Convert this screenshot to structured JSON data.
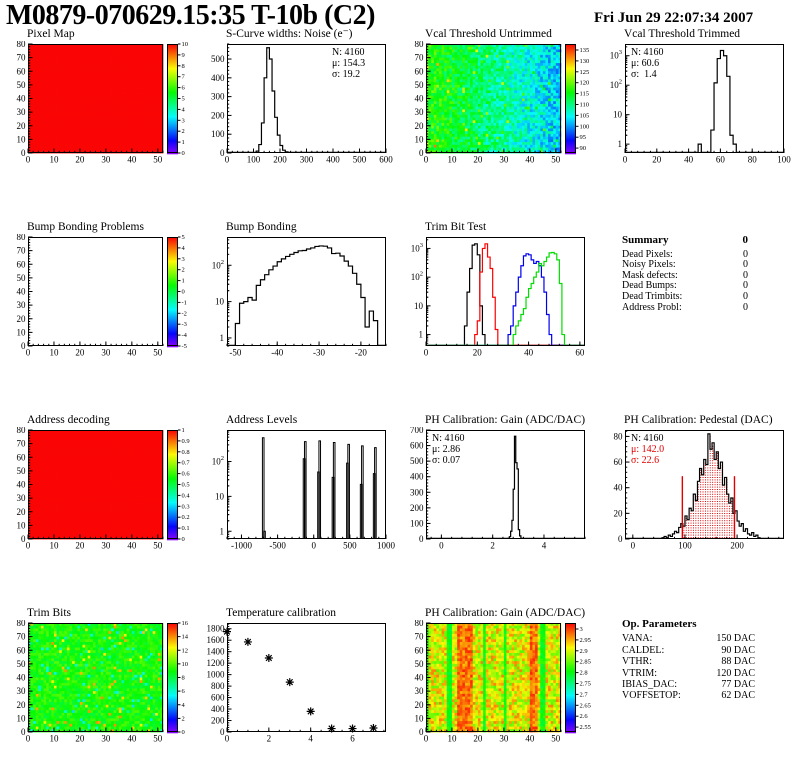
{
  "header": {
    "title": "M0879-070629.15:35 T-10b (C2)",
    "date": "Fri Jun 29 22:07:34 2007"
  },
  "summary": {
    "title": "Summary",
    "total": "0",
    "rows": [
      {
        "label": "Dead Pixels:",
        "value": "0"
      },
      {
        "label": "Noisy Pixels:",
        "value": "0"
      },
      {
        "label": "Mask defects:",
        "value": "0"
      },
      {
        "label": "Dead Bumps:",
        "value": "0"
      },
      {
        "label": "Dead Trimbits:",
        "value": "0"
      },
      {
        "label": "Address Probl:",
        "value": "0"
      }
    ]
  },
  "op_parameters": {
    "title": "Op. Parameters",
    "rows": [
      {
        "label": "VANA:",
        "value": "150 DAC"
      },
      {
        "label": "CALDEL:",
        "value": "90 DAC"
      },
      {
        "label": "VTHR:",
        "value": "88 DAC"
      },
      {
        "label": "VTRIM:",
        "value": "120 DAC"
      },
      {
        "label": "IBIAS_DAC:",
        "value": "77 DAC"
      },
      {
        "label": "VOFFSETOP:",
        "value": "62 DAC"
      }
    ]
  },
  "chart_data": [
    {
      "type": "heatmap",
      "title": "Pixel Map",
      "xlim": [
        0,
        52
      ],
      "ylim": [
        0,
        80
      ],
      "xticks": [
        0,
        10,
        20,
        30,
        40,
        50
      ],
      "yticks": [
        0,
        10,
        20,
        30,
        40,
        50,
        60,
        70,
        80
      ],
      "xminor": 2,
      "yminor": 2,
      "fill": {
        "base": 1.0,
        "noise": 0,
        "seed": 1
      },
      "colorbar": {
        "labels": [
          "10",
          "9",
          "8",
          "7",
          "6",
          "5",
          "4",
          "3",
          "2",
          "1",
          "0"
        ],
        "edge": true
      },
      "zrange": [
        0,
        10
      ]
    },
    {
      "type": "hist",
      "title": "S-Curve widths: Noise (e⁻)",
      "xlim": [
        0,
        600
      ],
      "ylim": [
        0,
        580
      ],
      "xticks": [
        0,
        100,
        200,
        300,
        400,
        500,
        600
      ],
      "yticks": [
        0,
        100,
        200,
        300,
        400,
        500
      ],
      "xminor": 20,
      "yminor": 20,
      "series": [
        {
          "color": "#000000",
          "x0": 100,
          "dx": 10,
          "counts": [
            2,
            10,
            45,
            160,
            400,
            560,
            500,
            330,
            190,
            95,
            40,
            15,
            6,
            2,
            1
          ]
        }
      ],
      "stats": {
        "pos": "tr",
        "lines": [
          {
            "t": "N: 4160",
            "c": "#000000"
          },
          {
            "t": "μ: 154.3",
            "c": "#000000"
          },
          {
            "t": "σ: 19.2",
            "c": "#000000"
          }
        ]
      }
    },
    {
      "type": "heatmap",
      "title": "Vcal Threshold Untrimmed",
      "xlim": [
        0,
        52
      ],
      "ylim": [
        0,
        80
      ],
      "xticks": [
        0,
        10,
        20,
        30,
        40,
        50
      ],
      "yticks": [
        0,
        10,
        20,
        30,
        40,
        50,
        60,
        70,
        80
      ],
      "xminor": 2,
      "yminor": 2,
      "fill": {
        "base": 0.59,
        "xslope": -0.3,
        "noise": 0.2,
        "seed": 7,
        "speckles": [
          {
            "p": 0.03,
            "add": 0.22
          }
        ]
      },
      "colorbar": {
        "labels": [
          "135",
          "130",
          "125",
          "120",
          "115",
          "110",
          "105",
          "100",
          "95",
          "90"
        ],
        "edge": false
      },
      "zrange": [
        90,
        135
      ]
    },
    {
      "type": "hist",
      "title": "Vcal Threshold Trimmed",
      "xlim": [
        0,
        100
      ],
      "ylim": [
        0.5,
        2500
      ],
      "ylog": true,
      "xticks": [
        0,
        20,
        40,
        60,
        80,
        100
      ],
      "xminor": 4,
      "series": [
        {
          "color": "#000000",
          "x0": 46,
          "dx": 2,
          "counts": [
            1,
            0,
            0,
            0,
            3,
            120,
            800,
            1500,
            1000,
            200,
            2,
            1
          ]
        }
      ],
      "stats": {
        "pos": "tl",
        "lines": [
          {
            "t": "N: 4160",
            "c": "#000000"
          },
          {
            "t": "μ: 60.6",
            "c": "#000000"
          },
          {
            "t": "σ:  1.4",
            "c": "#000000"
          }
        ]
      }
    },
    {
      "type": "heatmap",
      "title": "Bump Bonding Problems",
      "xlim": [
        0,
        52
      ],
      "ylim": [
        0,
        80
      ],
      "xticks": [
        0,
        10,
        20,
        30,
        40,
        50
      ],
      "yticks": [
        0,
        10,
        20,
        30,
        40,
        50,
        60,
        70,
        80
      ],
      "xminor": 2,
      "yminor": 2,
      "colorbar": {
        "labels": [
          "5",
          "4",
          "3",
          "2",
          "1",
          "0",
          "-1",
          "-2",
          "-3",
          "-4",
          "-5"
        ],
        "edge": true
      },
      "zrange": [
        -5,
        5
      ]
    },
    {
      "type": "hist",
      "title": "Bump Bonding",
      "xlim": [
        -52,
        -14
      ],
      "ylim": [
        0.6,
        600
      ],
      "ylog": true,
      "xticks": [
        -50,
        -40,
        -30,
        -20
      ],
      "xminor": 2,
      "series": [
        {
          "color": "#000000",
          "x0": -50,
          "dx": 1,
          "counts": [
            2.5,
            9,
            10,
            13,
            11,
            28,
            40,
            55,
            75,
            95,
            125,
            150,
            175,
            200,
            225,
            250,
            255,
            280,
            300,
            330,
            340,
            335,
            300,
            210,
            215,
            180,
            130,
            95,
            60,
            30,
            13,
            2,
            5.5,
            3
          ]
        }
      ]
    },
    {
      "type": "hist",
      "title": "Trim Bit Test",
      "xlim": [
        0,
        62
      ],
      "ylim": [
        0.4,
        2500
      ],
      "ylog": true,
      "xticks": [
        0,
        20,
        40,
        60
      ],
      "xminor": 4,
      "series": [
        {
          "color": "#000000",
          "x0": 15,
          "dx": 1,
          "counts": [
            2,
            30,
            200,
            1300,
            1450,
            600,
            10,
            1
          ]
        },
        {
          "color": "#ff0000",
          "x0": 19,
          "dx": 1,
          "counts": [
            1,
            3,
            150,
            1000,
            1450,
            500,
            200,
            20,
            1.5
          ]
        },
        {
          "color": "#0000ee",
          "x0": 32,
          "dx": 1,
          "counts": [
            1,
            2,
            10,
            30,
            100,
            250,
            550,
            650,
            600,
            400,
            300,
            350,
            250,
            100,
            30,
            5,
            1
          ]
        },
        {
          "color": "#00dd00",
          "x0": 34,
          "dx": 1,
          "counts": [
            1,
            2,
            3,
            5,
            8,
            20,
            40,
            60,
            100,
            150,
            300,
            250,
            350,
            500,
            700,
            720,
            650,
            400,
            60,
            1
          ]
        }
      ]
    },
    {
      "type": "heatmap",
      "title": "Address decoding",
      "xlim": [
        0,
        52
      ],
      "ylim": [
        0,
        80
      ],
      "xticks": [
        0,
        10,
        20,
        30,
        40,
        50
      ],
      "yticks": [
        0,
        10,
        20,
        30,
        40,
        50,
        60,
        70,
        80
      ],
      "xminor": 2,
      "yminor": 2,
      "fill": {
        "base": 1.0,
        "noise": 0,
        "seed": 2
      },
      "colorbar": {
        "labels": [
          "1",
          "0.9",
          "0.8",
          "0.7",
          "0.6",
          "0.5",
          "0.4",
          "0.3",
          "0.2",
          "0.1",
          "0"
        ],
        "edge": true
      },
      "zrange": [
        0,
        1
      ]
    },
    {
      "type": "hist",
      "title": "Address Levels",
      "xlim": [
        -1200,
        1000
      ],
      "ylim": [
        0.6,
        800
      ],
      "ylog": true,
      "xticks": [
        -1000,
        -500,
        0,
        500,
        1000
      ],
      "xminor": 100,
      "spikes": [
        [
          -710,
          480
        ],
        [
          -692,
          1
        ],
        [
          -145,
          120
        ],
        [
          -128,
          370
        ],
        [
          55,
          50
        ],
        [
          72,
          390
        ],
        [
          255,
          35
        ],
        [
          272,
          350
        ],
        [
          455,
          90
        ],
        [
          472,
          310
        ],
        [
          645,
          22
        ],
        [
          662,
          280
        ],
        [
          825,
          45
        ],
        [
          842,
          250
        ]
      ]
    },
    {
      "type": "hist",
      "title": "PH Calibration: Gain (ADC/DAC)",
      "xlim": [
        -0.6,
        5.6
      ],
      "ylim": [
        0,
        700
      ],
      "xticks": [
        0,
        2,
        4
      ],
      "yticks": [
        0,
        100,
        200,
        300,
        400,
        500,
        600,
        700
      ],
      "xminor": 0.4,
      "yminor": 20,
      "series": [
        {
          "color": "#000000",
          "x0": 2.55,
          "dx": 0.05,
          "counts": [
            2,
            5,
            15,
            50,
            120,
            320,
            660,
            490,
            450,
            60,
            20,
            5,
            2
          ]
        }
      ],
      "stats": {
        "pos": "tl",
        "lines": [
          {
            "t": "N: 4160",
            "c": "#000000"
          },
          {
            "t": "μ: 2.86",
            "c": "#000000"
          },
          {
            "t": "σ: 0.07",
            "c": "#000000"
          }
        ]
      }
    },
    {
      "type": "hist",
      "title": "PH Calibration: Pedestal (DAC)",
      "xlim": [
        -15,
        290
      ],
      "ylim": [
        0,
        85
      ],
      "xticks": [
        0,
        100,
        200
      ],
      "yticks": [
        0,
        20,
        40,
        60,
        80
      ],
      "xminor": 20,
      "yminor": 4,
      "series": [
        {
          "color": "#000000",
          "x0": 56,
          "dx": 4,
          "counts": [
            1,
            2,
            1,
            3,
            2,
            4,
            6,
            5,
            9,
            12,
            10,
            18,
            15,
            24,
            22,
            35,
            30,
            45,
            55,
            50,
            62,
            58,
            82,
            70,
            75,
            62,
            68,
            55,
            60,
            42,
            48,
            35,
            28,
            32,
            20,
            22,
            14,
            10,
            12,
            6,
            8,
            4,
            3,
            5,
            2,
            3,
            1
          ]
        }
      ],
      "dotfill": {
        "x1": 95,
        "x2": 195,
        "color": "#e00000"
      },
      "vlines": [
        {
          "x": 95,
          "h": 49,
          "color": "#e00000"
        },
        {
          "x": 195,
          "h": 49,
          "color": "#e00000"
        }
      ],
      "stats": {
        "pos": "tl",
        "lines": [
          {
            "t": "N: 4160",
            "c": "#000000"
          },
          {
            "t": "μ: 142.0",
            "c": "#e00000"
          },
          {
            "t": "σ: 22.6",
            "c": "#e00000"
          }
        ]
      }
    },
    {
      "type": "heatmap",
      "title": "Trim Bits",
      "xlim": [
        0,
        52
      ],
      "ylim": [
        0,
        80
      ],
      "xticks": [
        0,
        10,
        20,
        30,
        40,
        50
      ],
      "yticks": [
        0,
        10,
        20,
        30,
        40,
        50,
        60,
        70,
        80
      ],
      "xminor": 2,
      "yminor": 2,
      "fill": {
        "base": 0.57,
        "noise": 0.12,
        "seed": 99,
        "speckles": [
          {
            "p": 0.04,
            "add": 0.25
          },
          {
            "p": 0.04,
            "add": -0.2
          }
        ]
      },
      "colorbar": {
        "labels": [
          "16",
          "14",
          "12",
          "10",
          "8",
          "6",
          "4",
          "2",
          "0"
        ],
        "edge": true
      },
      "zrange": [
        0,
        16
      ]
    },
    {
      "type": "scatter",
      "title": "Temperature calibration",
      "xlim": [
        0,
        7.6
      ],
      "ylim": [
        0,
        1900
      ],
      "xticks": [
        0,
        2,
        4,
        6
      ],
      "yticks": [
        0,
        200,
        400,
        600,
        800,
        1000,
        1200,
        1400,
        1600,
        1800
      ],
      "xminor": 0.5,
      "yminor": 40,
      "points": [
        [
          0,
          1750
        ],
        [
          1,
          1570
        ],
        [
          2,
          1290
        ],
        [
          3,
          870
        ],
        [
          4,
          360
        ],
        [
          5,
          60
        ],
        [
          6,
          60
        ],
        [
          7,
          70
        ]
      ]
    },
    {
      "type": "heatmap",
      "title": "PH Calibration: Gain (ADC/DAC)",
      "xlim": [
        0,
        52
      ],
      "ylim": [
        0,
        80
      ],
      "xticks": [
        0,
        10,
        20,
        30,
        40,
        50
      ],
      "yticks": [
        0,
        10,
        20,
        30,
        40,
        50,
        60,
        70,
        80
      ],
      "xminor": 2,
      "yminor": 2,
      "fill": {
        "base": 0.76,
        "noise": 0.26,
        "seed": 55,
        "coolCols": [
          0,
          8,
          9,
          22,
          30,
          44,
          45
        ],
        "coolBase": 0.55,
        "hotCols": [
          12,
          13,
          14,
          15,
          16,
          17,
          40,
          41,
          42
        ],
        "hotBase": 0.9
      },
      "colorbar": {
        "labels": [
          "3",
          "2.95",
          "2.9",
          "2.85",
          "2.8",
          "2.75",
          "2.7",
          "2.65",
          "2.6",
          "2.55"
        ],
        "edge": false
      },
      "zrange": [
        2.55,
        3.0
      ]
    }
  ]
}
